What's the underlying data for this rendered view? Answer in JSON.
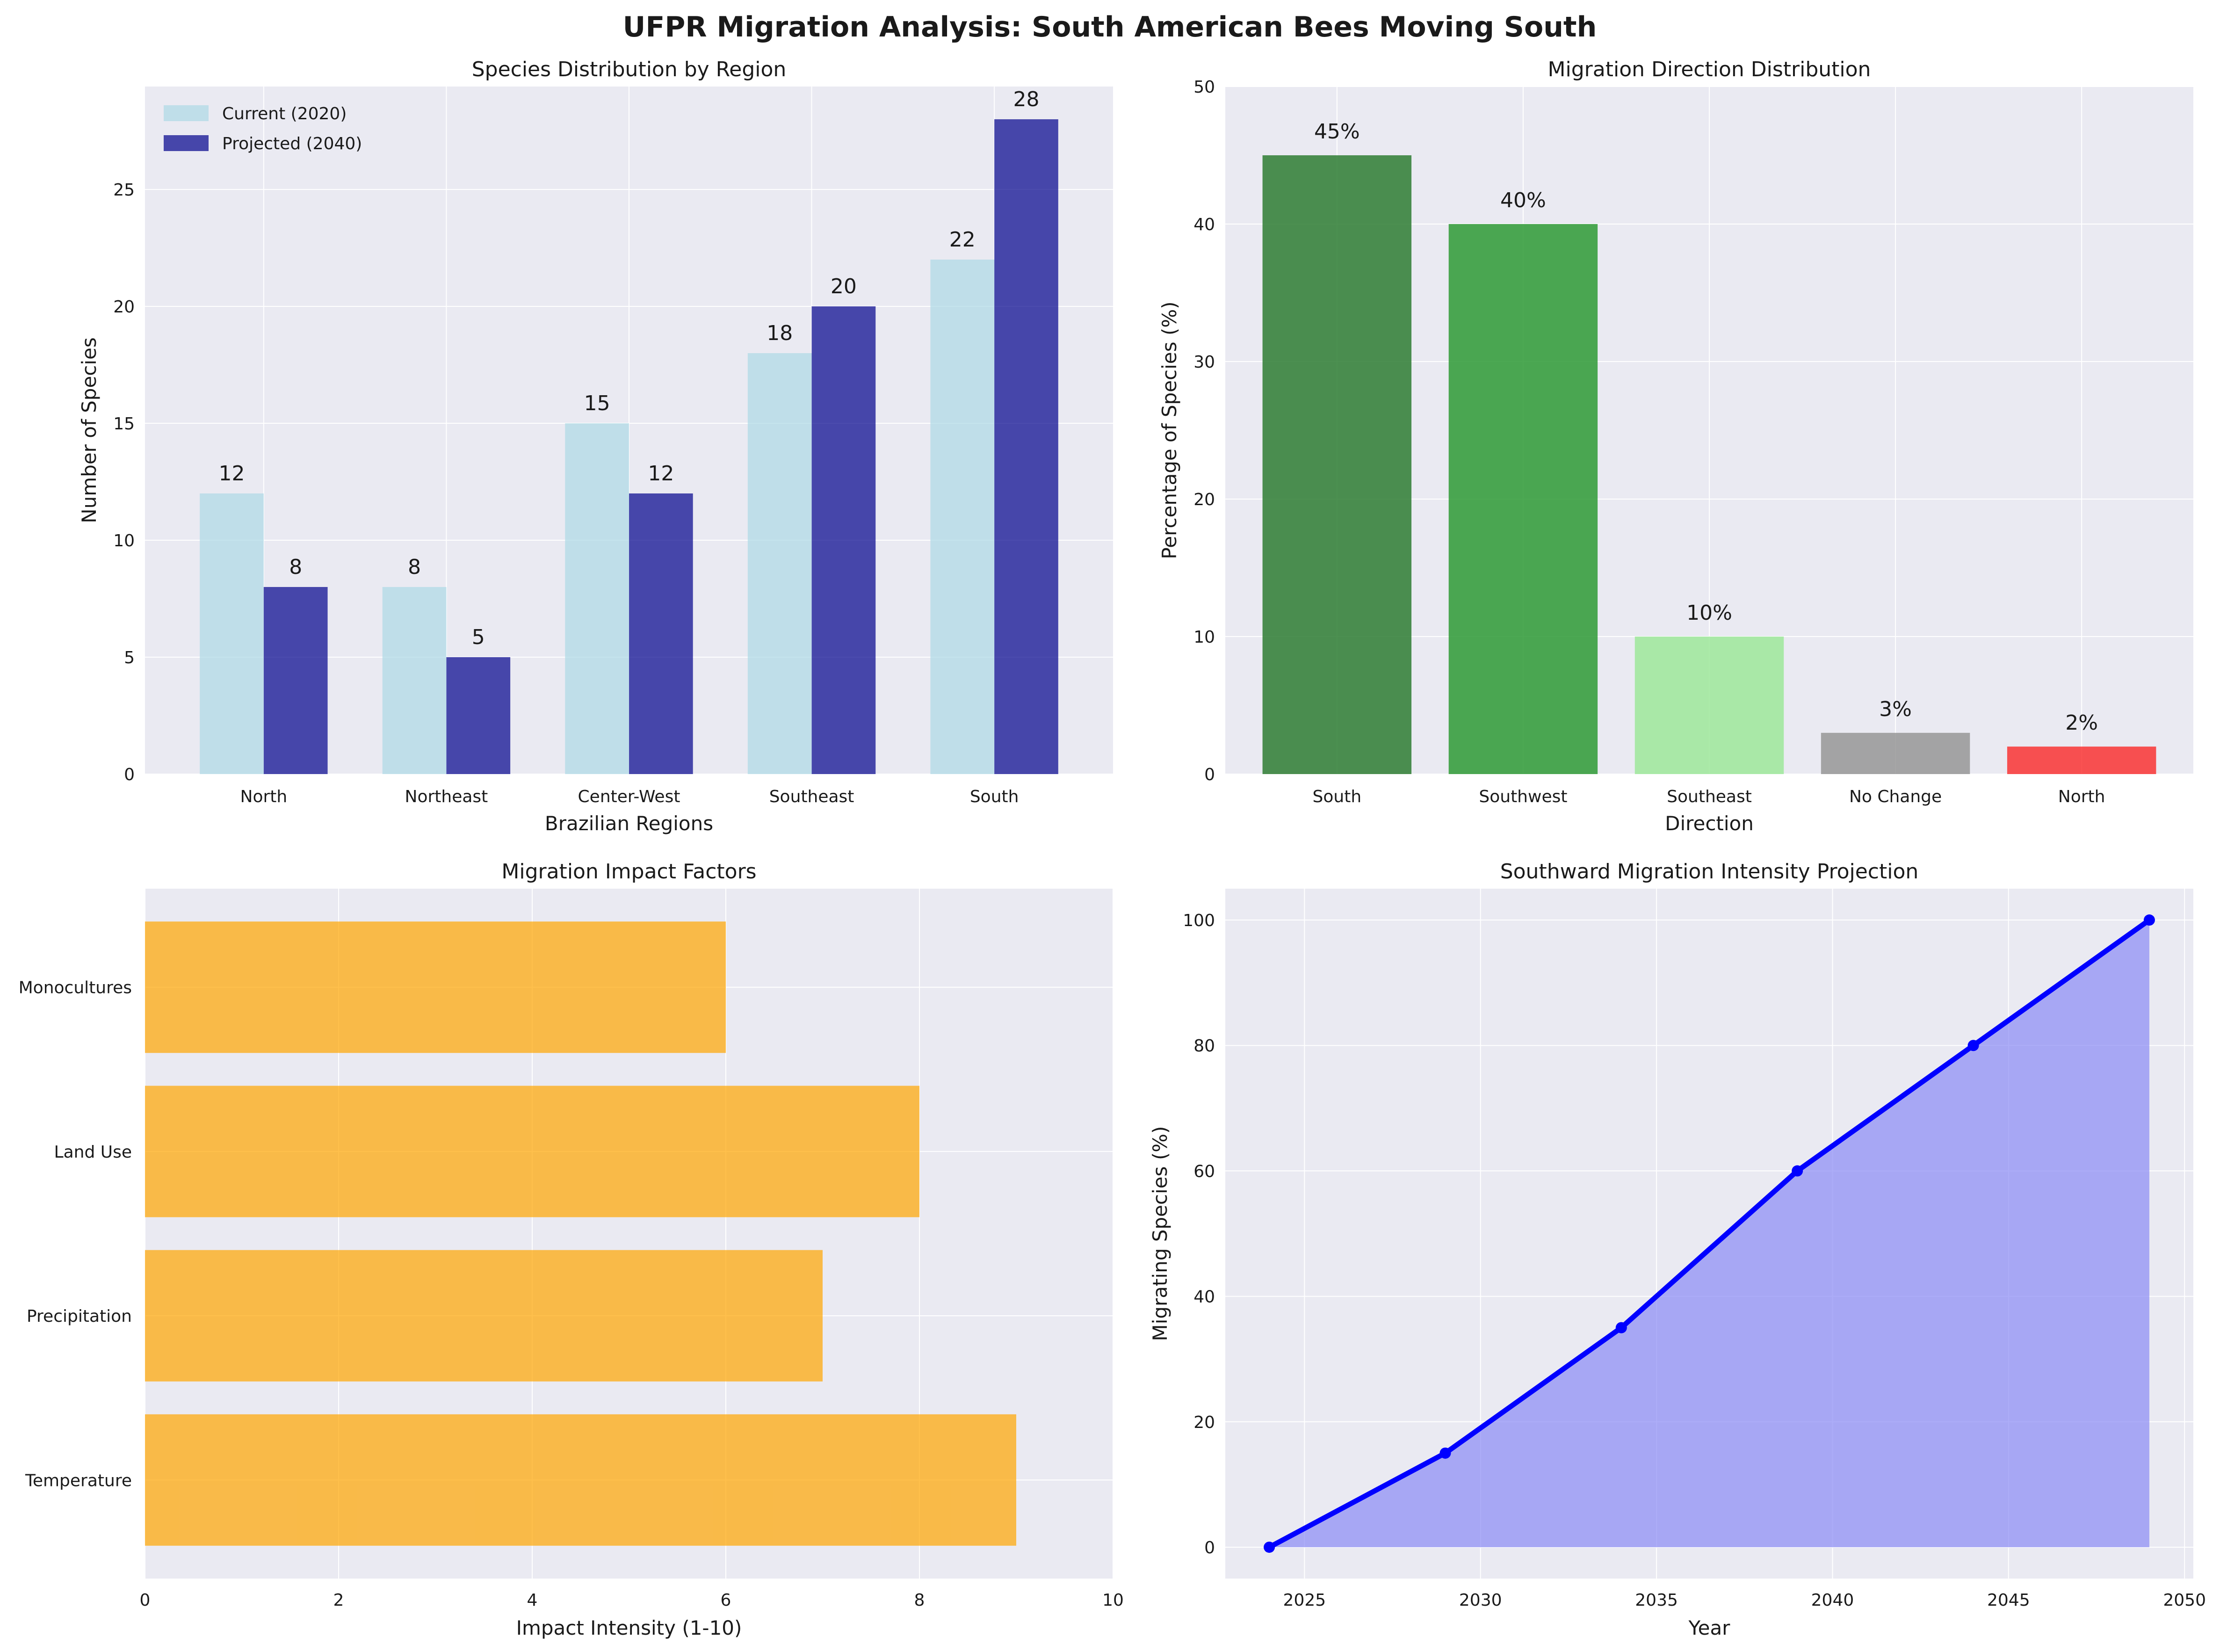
{
  "figure": {
    "title": "UFPR Migration Analysis: South American Bees Moving South",
    "colors": {
      "panel_bg": "#eaeaf2",
      "current": "#add8e6",
      "projected": "#00008b",
      "impact": "#ffa500",
      "line": "#0000ff",
      "area": "#8a8af5"
    }
  },
  "chart_data": [
    {
      "type": "bar",
      "title": "Species Distribution by Region",
      "xlabel": "Brazilian Regions",
      "ylabel": "Number of Species",
      "categories": [
        "North",
        "Northeast",
        "Center-West",
        "Southeast",
        "South"
      ],
      "series": [
        {
          "name": "Current (2020)",
          "values": [
            12,
            8,
            15,
            18,
            22
          ]
        },
        {
          "name": "Projected (2040)",
          "values": [
            8,
            5,
            12,
            20,
            28
          ]
        }
      ],
      "ylim": [
        0,
        29.4
      ],
      "yticks": [
        0,
        5,
        10,
        15,
        20,
        25
      ],
      "legend": "top-left",
      "grid": true
    },
    {
      "type": "bar",
      "title": "Migration Direction Distribution",
      "xlabel": "Direction",
      "ylabel": "Percentage of Species (%)",
      "categories": [
        "South",
        "Southwest",
        "Southeast",
        "No Change",
        "North"
      ],
      "values": [
        45,
        40,
        10,
        3,
        2
      ],
      "value_labels": [
        "45%",
        "40%",
        "10%",
        "3%",
        "2%"
      ],
      "colors": [
        "#2e7d32",
        "#2e9a35",
        "#9ee89a",
        "#979797",
        "#f93434"
      ],
      "ylim": [
        0,
        50
      ],
      "yticks": [
        0,
        10,
        20,
        30,
        40,
        50
      ],
      "grid": true
    },
    {
      "type": "bar",
      "orientation": "horizontal",
      "title": "Migration Impact Factors",
      "xlabel": "Impact Intensity (1-10)",
      "categories": [
        "Temperature",
        "Precipitation",
        "Land Use",
        "Monocultures"
      ],
      "values": [
        9,
        7,
        8,
        6
      ],
      "xlim": [
        0,
        10
      ],
      "xticks": [
        0,
        2,
        4,
        6,
        8,
        10
      ],
      "grid": true
    },
    {
      "type": "area",
      "title": "Southward Migration Intensity Projection",
      "xlabel": "Year",
      "ylabel": "Migrating Species (%)",
      "x": [
        2024,
        2029,
        2034,
        2039,
        2044,
        2049
      ],
      "values": [
        0,
        15,
        35,
        60,
        80,
        100
      ],
      "xlim": [
        2022.75,
        2050.25
      ],
      "ylim": [
        -5,
        105
      ],
      "xticks": [
        2025,
        2030,
        2035,
        2040,
        2045,
        2050
      ],
      "yticks": [
        0,
        20,
        40,
        60,
        80,
        100
      ],
      "grid": true
    }
  ]
}
